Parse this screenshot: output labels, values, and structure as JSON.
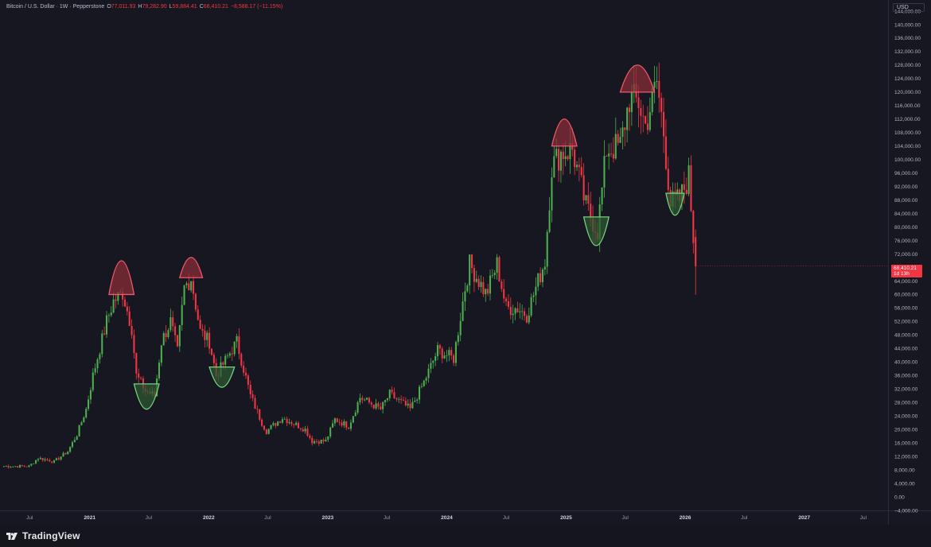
{
  "header": {
    "symbol_label": "Bitcoin / U.S. Dollar · 1W · Pepperstone",
    "open_label": "O",
    "open_value": "77,011.93",
    "high_label": "H",
    "high_value": "79,282.90",
    "low_label": "L",
    "low_value": "59,884.41",
    "close_label": "C",
    "close_value": "68,410.21",
    "change_value": "−8,588.17 (−11.15%)"
  },
  "price_scale": {
    "currency": "USD",
    "last_price": "68,410.21",
    "countdown": "1d 13h"
  },
  "footer": {
    "brand": "TradingView"
  },
  "colors": {
    "background": "#161720",
    "up": "#4caf50",
    "down": "#f23645",
    "top_fill": "#8b2c37",
    "top_stroke": "#f0586a",
    "bottom_fill": "#2d5a32",
    "bottom_stroke": "#77d17d"
  },
  "icons": {
    "brand_icon": "tradingview-logo-icon"
  },
  "chart_data": {
    "type": "candlestick",
    "timeframe": "1W",
    "ylim": [
      -4000,
      144000
    ],
    "y_ticks": [
      "−4,000.00",
      "0.00",
      "4,000.00",
      "8,000.00",
      "12,000.00",
      "16,000.00",
      "20,000.00",
      "24,000.00",
      "28,000.00",
      "32,000.00",
      "36,000.00",
      "40,000.00",
      "44,000.00",
      "48,000.00",
      "52,000.00",
      "56,000.00",
      "60,000.00",
      "64,000.00",
      "68,000.00",
      "72,000.00",
      "76,000.00",
      "80,000.00",
      "84,000.00",
      "88,000.00",
      "92,000.00",
      "96,000.00",
      "100,000.00",
      "104,000.00",
      "108,000.00",
      "112,000.00",
      "116,000.00",
      "120,000.00",
      "124,000.00",
      "128,000.00",
      "132,000.00",
      "136,000.00",
      "140,000.00",
      "144,000.00"
    ],
    "y_tick_values": [
      -4000,
      0,
      4000,
      8000,
      12000,
      16000,
      20000,
      24000,
      28000,
      32000,
      36000,
      40000,
      44000,
      48000,
      52000,
      56000,
      60000,
      64000,
      68000,
      72000,
      76000,
      80000,
      84000,
      88000,
      92000,
      96000,
      100000,
      104000,
      108000,
      112000,
      116000,
      120000,
      124000,
      128000,
      132000,
      136000,
      140000,
      144000
    ],
    "x_ticks": [
      {
        "label": "Jul",
        "date": "2020-07-01",
        "bold": false
      },
      {
        "label": "2021",
        "date": "2021-01-01",
        "bold": true
      },
      {
        "label": "Jul",
        "date": "2021-07-01",
        "bold": false
      },
      {
        "label": "2022",
        "date": "2022-01-01",
        "bold": true
      },
      {
        "label": "Jul",
        "date": "2022-07-01",
        "bold": false
      },
      {
        "label": "2023",
        "date": "2023-01-01",
        "bold": true
      },
      {
        "label": "Jul",
        "date": "2023-07-01",
        "bold": false
      },
      {
        "label": "2024",
        "date": "2024-01-01",
        "bold": true
      },
      {
        "label": "Jul",
        "date": "2024-07-01",
        "bold": false
      },
      {
        "label": "2025",
        "date": "2025-01-01",
        "bold": true
      },
      {
        "label": "Jul",
        "date": "2025-07-01",
        "bold": false
      },
      {
        "label": "2026",
        "date": "2026-01-01",
        "bold": true
      },
      {
        "label": "Jul",
        "date": "2026-07-01",
        "bold": false
      },
      {
        "label": "2027",
        "date": "2027-01-01",
        "bold": true
      },
      {
        "label": "Jul",
        "date": "2027-07-01",
        "bold": false
      }
    ],
    "x_range": [
      "2020-04-01",
      "2027-09-15"
    ],
    "anchors": [
      {
        "date": "2020-04-13",
        "close": 9100
      },
      {
        "date": "2020-06-29",
        "close": 9100
      },
      {
        "date": "2020-07-27",
        "close": 11500
      },
      {
        "date": "2020-09-14",
        "close": 10500
      },
      {
        "date": "2020-10-26",
        "close": 13500
      },
      {
        "date": "2020-11-23",
        "close": 18500
      },
      {
        "date": "2020-12-21",
        "close": 26000
      },
      {
        "date": "2021-01-11",
        "close": 36000
      },
      {
        "date": "2021-02-22",
        "close": 52000
      },
      {
        "date": "2021-03-15",
        "close": 58000
      },
      {
        "date": "2021-04-12",
        "close": 60500
      },
      {
        "date": "2021-05-10",
        "close": 50000
      },
      {
        "date": "2021-05-24",
        "close": 36000
      },
      {
        "date": "2021-06-21",
        "close": 31500
      },
      {
        "date": "2021-07-19",
        "close": 30000
      },
      {
        "date": "2021-08-09",
        "close": 46000
      },
      {
        "date": "2021-09-06",
        "close": 52000
      },
      {
        "date": "2021-09-27",
        "close": 43000
      },
      {
        "date": "2021-10-18",
        "close": 62000
      },
      {
        "date": "2021-11-08",
        "close": 65000
      },
      {
        "date": "2021-12-06",
        "close": 49000
      },
      {
        "date": "2022-01-03",
        "close": 46000
      },
      {
        "date": "2022-01-24",
        "close": 36000
      },
      {
        "date": "2022-03-28",
        "close": 46000
      },
      {
        "date": "2022-05-09",
        "close": 30000
      },
      {
        "date": "2022-06-13",
        "close": 22000
      },
      {
        "date": "2022-06-27",
        "close": 19500
      },
      {
        "date": "2022-08-15",
        "close": 23500
      },
      {
        "date": "2022-10-24",
        "close": 20000
      },
      {
        "date": "2022-11-14",
        "close": 16500
      },
      {
        "date": "2022-12-26",
        "close": 16600
      },
      {
        "date": "2023-01-23",
        "close": 23000
      },
      {
        "date": "2023-03-06",
        "close": 21000
      },
      {
        "date": "2023-04-10",
        "close": 29500
      },
      {
        "date": "2023-06-12",
        "close": 26000
      },
      {
        "date": "2023-07-10",
        "close": 30500
      },
      {
        "date": "2023-09-11",
        "close": 26000
      },
      {
        "date": "2023-10-23",
        "close": 34000
      },
      {
        "date": "2023-12-04",
        "close": 43500
      },
      {
        "date": "2024-01-22",
        "close": 41000
      },
      {
        "date": "2024-02-26",
        "close": 62000
      },
      {
        "date": "2024-03-11",
        "close": 69000
      },
      {
        "date": "2024-05-01",
        "close": 60000
      },
      {
        "date": "2024-06-03",
        "close": 69000
      },
      {
        "date": "2024-07-01",
        "close": 56000
      },
      {
        "date": "2024-08-05",
        "close": 56000
      },
      {
        "date": "2024-09-02",
        "close": 54000
      },
      {
        "date": "2024-10-28",
        "close": 70000
      },
      {
        "date": "2024-11-18",
        "close": 98000
      },
      {
        "date": "2024-12-16",
        "close": 102000
      },
      {
        "date": "2025-01-20",
        "close": 103000
      },
      {
        "date": "2025-03-03",
        "close": 86000
      },
      {
        "date": "2025-04-07",
        "close": 79000
      },
      {
        "date": "2025-05-05",
        "close": 103000
      },
      {
        "date": "2025-06-16",
        "close": 104000
      },
      {
        "date": "2025-07-14",
        "close": 118000
      },
      {
        "date": "2025-08-11",
        "close": 117000
      },
      {
        "date": "2025-09-01",
        "close": 110000
      },
      {
        "date": "2025-10-06",
        "close": 123000
      },
      {
        "date": "2025-10-27",
        "close": 108000
      },
      {
        "date": "2025-11-17",
        "close": 87000
      },
      {
        "date": "2025-12-15",
        "close": 88000
      },
      {
        "date": "2026-01-12",
        "close": 95000
      },
      {
        "date": "2026-01-26",
        "close": 77000
      },
      {
        "date": "2026-02-02",
        "close": 68410
      }
    ],
    "last_candle": {
      "open": 77011.93,
      "high": 79282.9,
      "low": 59884.41,
      "close": 68410.21
    },
    "overlays": [
      {
        "shape": "top-arc",
        "start": "2021-03-01",
        "end": "2021-05-17",
        "base": 60000,
        "peak": 70000
      },
      {
        "shape": "bottom-arc",
        "start": "2021-05-17",
        "end": "2021-08-02",
        "base": 33500,
        "trough": 26000
      },
      {
        "shape": "top-arc",
        "start": "2021-10-04",
        "end": "2021-12-13",
        "base": 65000,
        "peak": 71000
      },
      {
        "shape": "bottom-arc",
        "start": "2022-01-03",
        "end": "2022-03-21",
        "base": 38500,
        "trough": 32500
      },
      {
        "shape": "top-arc",
        "start": "2024-11-18",
        "end": "2025-02-03",
        "base": 104000,
        "peak": 112000
      },
      {
        "shape": "bottom-arc",
        "start": "2025-02-24",
        "end": "2025-05-12",
        "base": 83000,
        "trough": 74500
      },
      {
        "shape": "top-arc",
        "start": "2025-06-16",
        "end": "2025-09-29",
        "base": 120000,
        "peak": 128000
      },
      {
        "shape": "bottom-arc",
        "start": "2025-11-03",
        "end": "2025-12-29",
        "base": 90000,
        "trough": 83500
      }
    ]
  }
}
